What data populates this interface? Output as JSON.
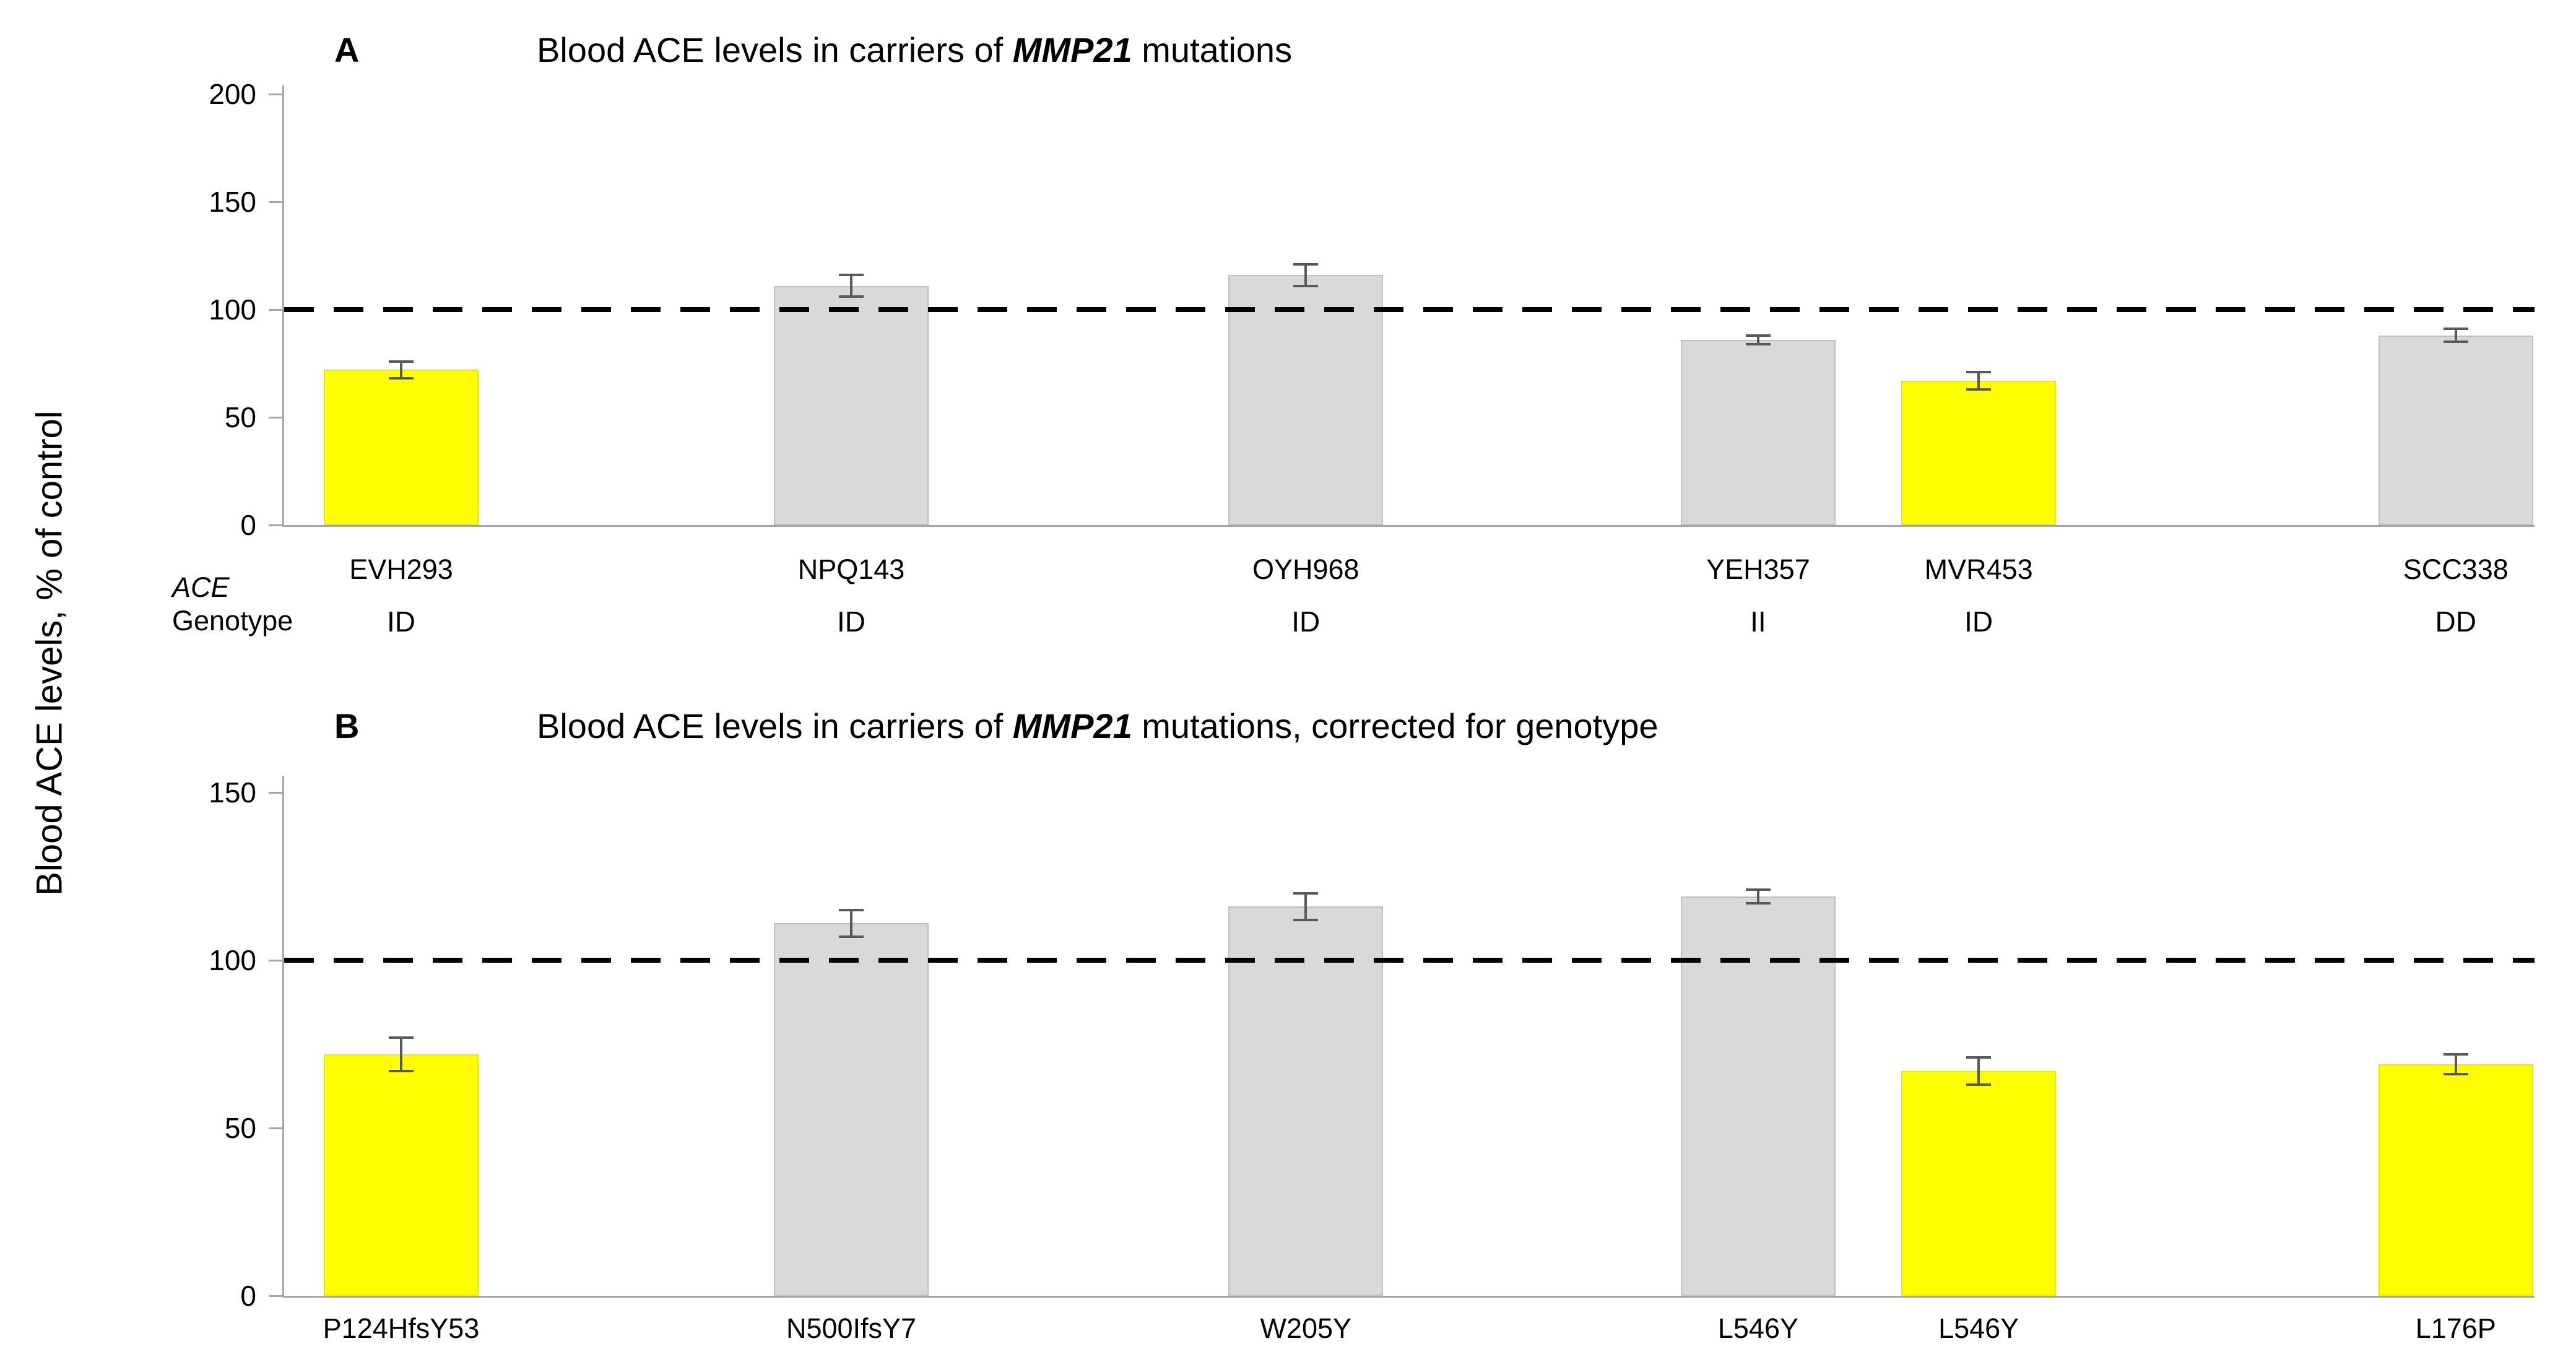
{
  "figure": {
    "y_axis_label": "Blood ACE levels, % of control"
  },
  "colors": {
    "highlight_bar": "#FFFF00",
    "default_bar": "#D9D9D9",
    "error_bar": "#595959",
    "axis": "#A6A6A6",
    "reference_line": "#000000"
  },
  "chart_data": [
    {
      "type": "bar",
      "panel": "A",
      "title": "Blood ACE levels in carriers of MMP21 mutations",
      "title_parts": {
        "prefix": "Blood ACE levels in carriers of ",
        "gene": "MMP21",
        "suffix": " mutations"
      },
      "categories": [
        "EVH293",
        "NPQ143",
        "OYH968",
        "YEH357",
        "MVR453",
        "SCC338"
      ],
      "values": [
        72,
        111,
        116,
        86,
        67,
        88
      ],
      "errors": [
        4,
        5,
        5,
        2,
        4,
        3
      ],
      "colors": [
        "#FFFF00",
        "#D9D9D9",
        "#D9D9D9",
        "#D9D9D9",
        "#FFFF00",
        "#D9D9D9"
      ],
      "genotypes": [
        "ID",
        "ID",
        "ID",
        "II",
        "ID",
        "DD"
      ],
      "genotype_label_line1": "ACE",
      "genotype_label_line2": "Genotype",
      "xlabel": "",
      "ylabel": "",
      "ylim": [
        0,
        200
      ],
      "yticks": [
        0,
        50,
        100,
        150,
        200
      ],
      "reference_line": 100,
      "grid": false,
      "legend": false
    },
    {
      "type": "bar",
      "panel": "B",
      "title": "Blood ACE levels in carriers of MMP21 mutations, corrected for genotype",
      "title_parts": {
        "prefix": "Blood ACE levels in carriers of ",
        "gene": "MMP21",
        "suffix": " mutations, corrected for genotype"
      },
      "categories": [
        "P124HfsY53",
        "N500IfsY7",
        "W205Y",
        "L546Y",
        "L546Y",
        "L176P"
      ],
      "values": [
        72,
        111,
        116,
        119,
        67,
        69
      ],
      "errors": [
        5,
        4,
        4,
        2,
        4,
        3
      ],
      "colors": [
        "#FFFF00",
        "#D9D9D9",
        "#D9D9D9",
        "#D9D9D9",
        "#FFFF00",
        "#FFFF00"
      ],
      "xlabel": "",
      "ylabel": "",
      "ylim": [
        0,
        150
      ],
      "yticks": [
        0,
        50,
        100,
        150
      ],
      "reference_line": 100,
      "grid": false,
      "legend": false
    }
  ]
}
